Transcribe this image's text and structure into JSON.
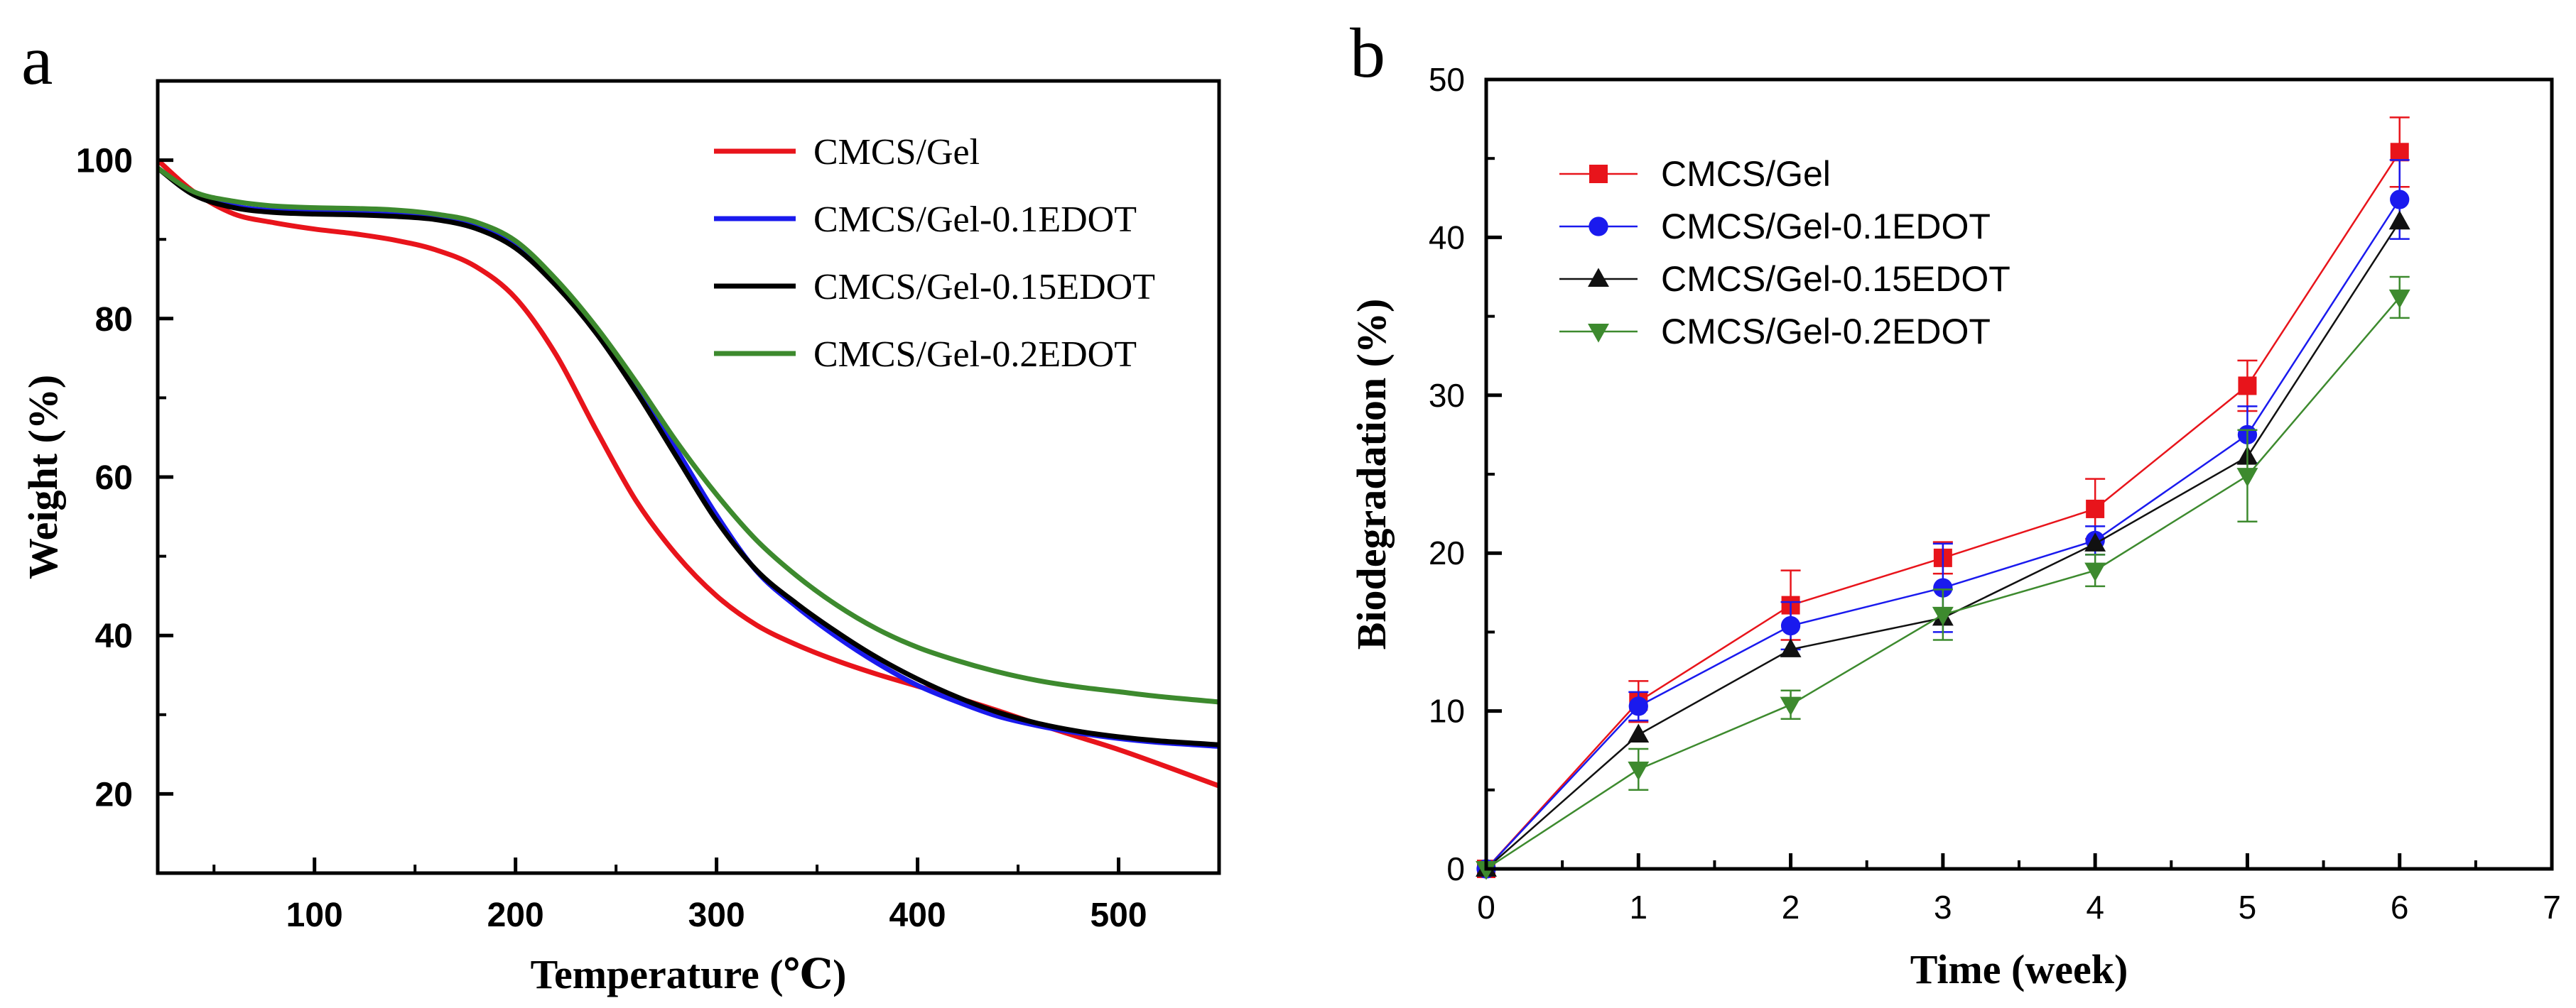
{
  "chart_data": [
    {
      "panel_label": "a",
      "type": "line",
      "xlabel": "Temperature (℃)",
      "ylabel": "Weight (%)",
      "xlim": [
        22,
        550
      ],
      "ylim": [
        10,
        110
      ],
      "xticks": [
        100,
        200,
        300,
        400,
        500
      ],
      "yticks": [
        20,
        40,
        60,
        80,
        100
      ],
      "legend_position": "top-right",
      "series": [
        {
          "name": "CMCS/Gel",
          "color": "#e8141b",
          "x": [
            22,
            40,
            60,
            80,
            100,
            120,
            140,
            160,
            180,
            200,
            220,
            240,
            260,
            280,
            300,
            320,
            340,
            360,
            380,
            400,
            420,
            440,
            460,
            480,
            500,
            520,
            550
          ],
          "y": [
            100,
            96,
            93.2,
            92.1,
            91.3,
            90.7,
            89.9,
            88.7,
            86.6,
            82.6,
            75.5,
            66,
            57,
            50.2,
            45,
            41.3,
            38.8,
            36.8,
            35.1,
            33.6,
            32.1,
            30.5,
            28.8,
            27.2,
            25.6,
            23.8,
            21
          ]
        },
        {
          "name": "CMCS/Gel-0.1EDOT",
          "color": "#1a1aee",
          "x": [
            22,
            40,
            60,
            80,
            100,
            120,
            140,
            160,
            180,
            200,
            220,
            240,
            260,
            280,
            300,
            320,
            340,
            360,
            380,
            400,
            420,
            440,
            460,
            480,
            500,
            520,
            550
          ],
          "y": [
            99,
            95.8,
            94.2,
            93.6,
            93.4,
            93.3,
            93.1,
            92.7,
            91.6,
            89.2,
            84.5,
            78.6,
            71.6,
            63.5,
            55.2,
            48.1,
            43.6,
            39.8,
            36.5,
            33.7,
            31.6,
            29.8,
            28.6,
            27.7,
            27,
            26.5,
            26
          ]
        },
        {
          "name": "CMCS/Gel-0.15EDOT",
          "color": "#000000",
          "x": [
            22,
            40,
            60,
            80,
            100,
            120,
            140,
            160,
            180,
            200,
            220,
            240,
            260,
            280,
            300,
            320,
            340,
            360,
            380,
            400,
            420,
            440,
            460,
            480,
            500,
            520,
            550
          ],
          "y": [
            99,
            95.6,
            94,
            93.4,
            93.2,
            93.1,
            92.9,
            92.5,
            91.4,
            88.9,
            84.2,
            78.2,
            70.8,
            62.6,
            54.5,
            48.2,
            44,
            40.4,
            37.2,
            34.5,
            32.2,
            30.3,
            28.9,
            27.9,
            27.2,
            26.7,
            26.2
          ]
        },
        {
          "name": "CMCS/Gel-0.2EDOT",
          "color": "#3d8a2e",
          "x": [
            22,
            40,
            60,
            80,
            100,
            120,
            140,
            160,
            180,
            200,
            220,
            240,
            260,
            280,
            300,
            320,
            340,
            360,
            380,
            400,
            420,
            440,
            460,
            480,
            500,
            520,
            550
          ],
          "y": [
            99,
            96,
            94.8,
            94.2,
            94,
            93.9,
            93.7,
            93.2,
            92.2,
            89.8,
            85,
            79,
            72,
            64.5,
            57.8,
            52,
            47.5,
            43.8,
            40.8,
            38.5,
            36.8,
            35.4,
            34.3,
            33.5,
            32.9,
            32.3,
            31.6
          ]
        }
      ]
    },
    {
      "panel_label": "b",
      "type": "line",
      "xlabel": "Time (week)",
      "ylabel": "Biodegradation (%)",
      "xlim": [
        0,
        7
      ],
      "ylim": [
        0,
        50
      ],
      "xticks": [
        0,
        1,
        2,
        3,
        4,
        5,
        6,
        7
      ],
      "yticks": [
        0,
        10,
        20,
        30,
        40,
        50
      ],
      "legend_position": "top-left",
      "series": [
        {
          "name": "CMCS/Gel",
          "color": "#e8141b",
          "marker": "square",
          "x": [
            0,
            1,
            2,
            3,
            4,
            5,
            6
          ],
          "y": [
            0,
            10.6,
            16.7,
            19.7,
            22.8,
            30.6,
            45.4
          ],
          "err": [
            0,
            1.3,
            2.2,
            1.0,
            1.9,
            1.6,
            2.2
          ]
        },
        {
          "name": "CMCS/Gel-0.1EDOT",
          "color": "#1a1aee",
          "marker": "circle",
          "x": [
            0,
            1,
            2,
            3,
            4,
            5,
            6
          ],
          "y": [
            0,
            10.3,
            15.4,
            17.8,
            20.8,
            27.5,
            42.4
          ],
          "err": [
            0,
            0.9,
            1.5,
            2.8,
            0.9,
            1.8,
            2.5
          ]
        },
        {
          "name": "CMCS/Gel-0.15EDOT",
          "color": "#111111",
          "marker": "triangle-up",
          "x": [
            0,
            1,
            2,
            3,
            4,
            5,
            6
          ],
          "y": [
            0,
            8.5,
            13.9,
            15.9,
            20.6,
            26.1,
            41
          ]
        },
        {
          "name": "CMCS/Gel-0.2EDOT",
          "color": "#3d8a2e",
          "marker": "triangle-down",
          "x": [
            0,
            1,
            2,
            3,
            4,
            5,
            6
          ],
          "y": [
            0,
            6.3,
            10.4,
            16.1,
            18.9,
            24.9,
            36.2
          ],
          "err": [
            0,
            1.3,
            0.9,
            1.6,
            1.0,
            2.9,
            1.3
          ]
        }
      ]
    }
  ]
}
